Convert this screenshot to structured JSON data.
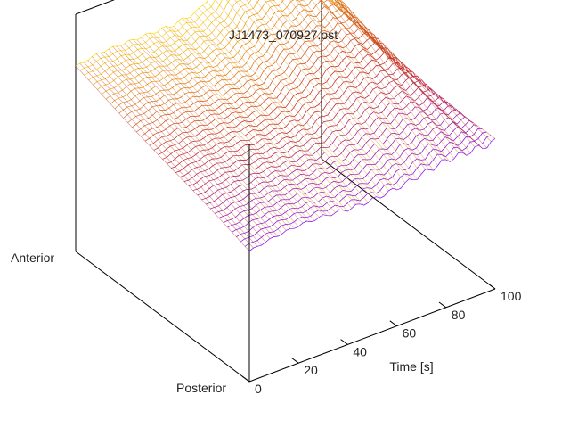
{
  "chart_data": {
    "type": "surface",
    "title": "JJ1473_070927.ost",
    "xlabel": "Time [s]",
    "x_ticks": [
      "0",
      "20",
      "40",
      "60",
      "80",
      "100"
    ],
    "xlim": [
      0,
      100
    ],
    "y_ends": {
      "near": "Posterior",
      "far": "Anterior"
    },
    "color_scale": {
      "low": "#8000ff",
      "mid": "#c02020",
      "high": "#ffe000"
    },
    "grid": false,
    "series": [
      {
        "description_free": true,
        "x": [
          0,
          10,
          20,
          30,
          40,
          50,
          60,
          70,
          80,
          90,
          100
        ],
        "z_near": [
          0.55,
          0.57,
          0.58,
          0.58,
          0.57,
          0.57,
          0.58,
          0.6,
          0.62,
          0.62,
          0.62
        ],
        "z_far": [
          0.78,
          0.8,
          0.8,
          0.8,
          0.8,
          0.82,
          0.92,
          0.97,
          0.98,
          0.92,
          0.68
        ]
      }
    ]
  }
}
